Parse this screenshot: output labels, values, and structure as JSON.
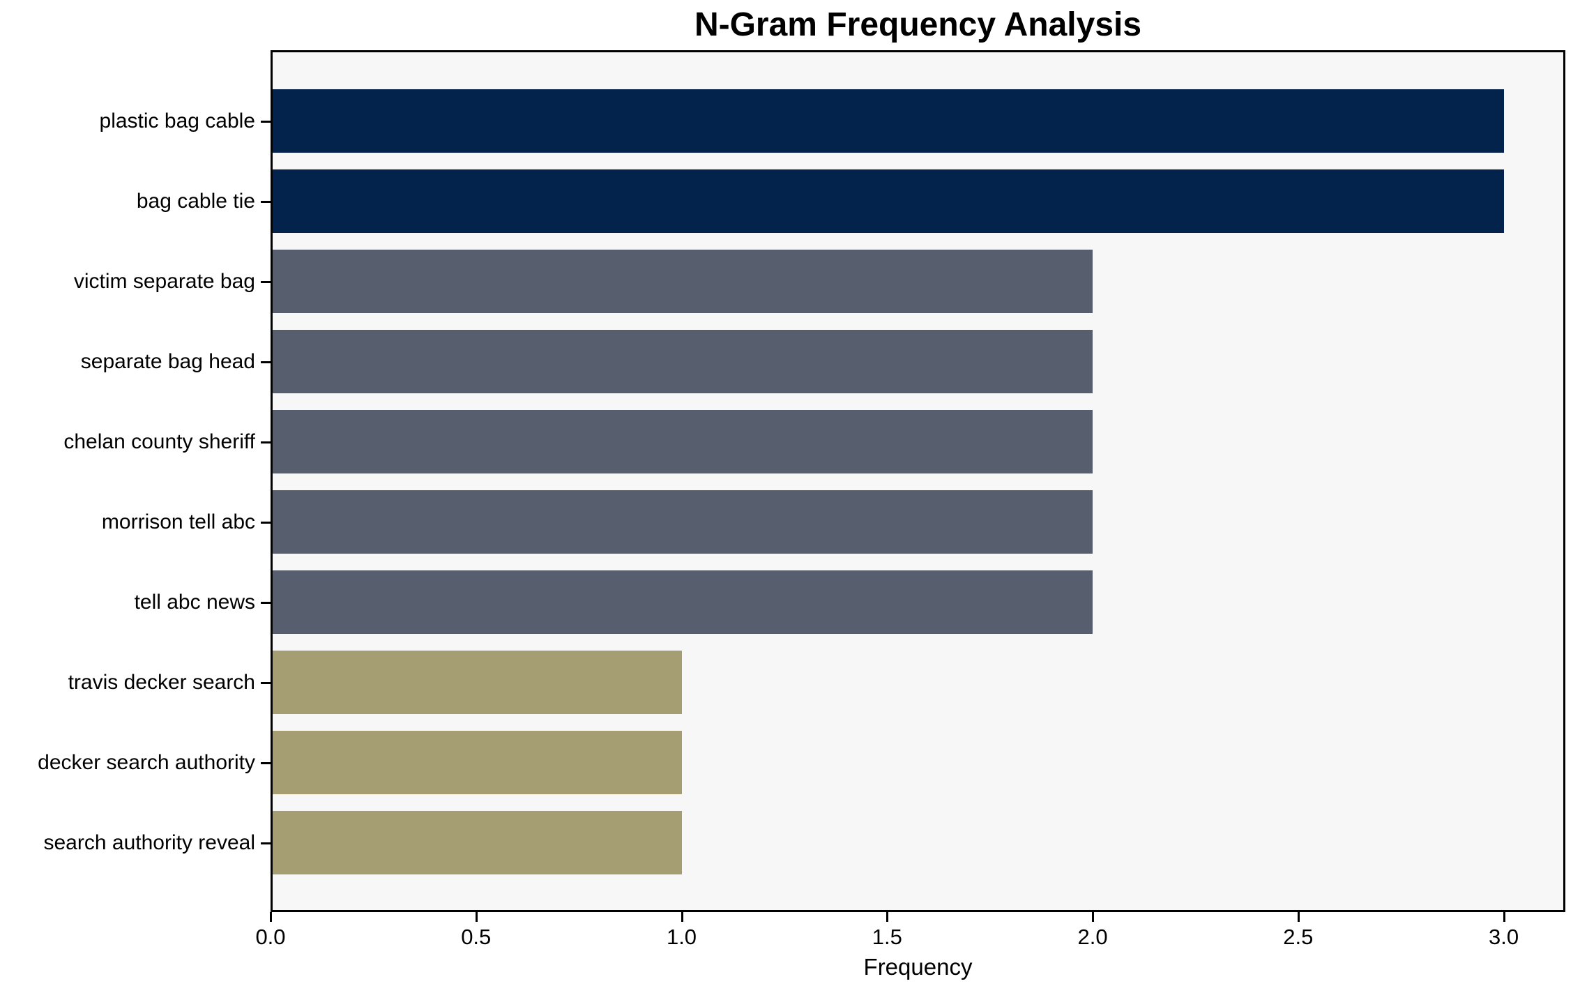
{
  "chart_data": {
    "type": "bar",
    "orientation": "horizontal",
    "title": "N-Gram Frequency Analysis",
    "xlabel": "Frequency",
    "ylabel": "",
    "categories": [
      "plastic bag cable",
      "bag cable tie",
      "victim separate bag",
      "separate bag head",
      "chelan county sheriff",
      "morrison tell abc",
      "tell abc news",
      "travis decker search",
      "decker search authority",
      "search authority reveal"
    ],
    "values": [
      3,
      3,
      2,
      2,
      2,
      2,
      2,
      1,
      1,
      1
    ],
    "bar_colors": [
      "#03224c",
      "#03224c",
      "#575e6d",
      "#575e6d",
      "#575e6d",
      "#575e6d",
      "#575e6d",
      "#a59e73",
      "#a59e73",
      "#a59e73"
    ],
    "xticks": [
      0.0,
      0.5,
      1.0,
      1.5,
      2.0,
      2.5,
      3.0
    ],
    "xtick_labels": [
      "0.0",
      "0.5",
      "1.0",
      "1.5",
      "2.0",
      "2.5",
      "3.0"
    ],
    "xlim": [
      0,
      3.15
    ],
    "grid": false,
    "legend": null,
    "colors": {
      "plot_background": "#f7f7f8",
      "figure_background": "#ffffff",
      "axis": "#000000",
      "freq3_bar": "#03224c",
      "freq2_bar": "#575e6d",
      "freq1_bar": "#a59e73"
    }
  }
}
